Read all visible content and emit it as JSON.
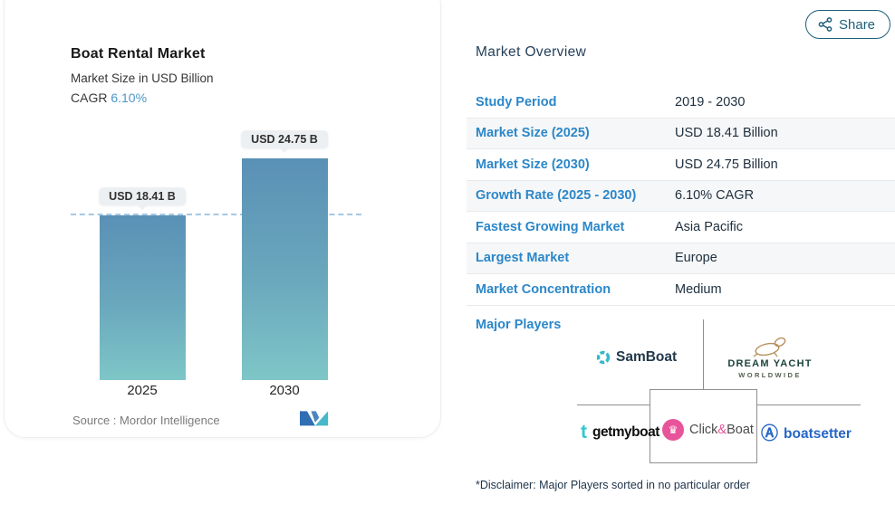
{
  "share": {
    "label": "Share"
  },
  "chart_card": {
    "title": "Boat Rental Market",
    "subtitle": "Market Size in USD Billion",
    "cagr_label": "CAGR",
    "cagr_value": "6.10%",
    "source_prefix": "Source :",
    "source_name": "Mordor Intelligence"
  },
  "chart_data": {
    "type": "bar",
    "categories": [
      "2025",
      "2030"
    ],
    "values": [
      18.41,
      24.75
    ],
    "value_labels": [
      "USD 18.41 B",
      "USD 24.75 B"
    ],
    "title": "Boat Rental Market",
    "ylabel": "Market Size in USD Billion",
    "cagr": "6.10%",
    "baseline_at": 18.41,
    "ylim": [
      0,
      26
    ],
    "grid": false,
    "legend": false,
    "bar_gradient": [
      "#5a90b6",
      "#7ec6c7"
    ],
    "baseline_color": "#a6c8e4"
  },
  "overview": {
    "heading": "Market Overview",
    "rows": [
      {
        "label": "Study Period",
        "value": "2019 - 2030"
      },
      {
        "label": "Market Size (2025)",
        "value": "USD 18.41 Billion"
      },
      {
        "label": "Market Size (2030)",
        "value": "USD 24.75 Billion"
      },
      {
        "label": "Growth Rate (2025 - 2030)",
        "value": "6.10% CAGR"
      },
      {
        "label": "Fastest Growing Market",
        "value": "Asia Pacific"
      },
      {
        "label": "Largest Market",
        "value": "Europe"
      },
      {
        "label": "Market Concentration",
        "value": "Medium"
      }
    ],
    "major_players_label": "Major Players",
    "players": {
      "samboat": {
        "name": "SamBoat"
      },
      "dream_yacht": {
        "line1": "DREAM YACHT",
        "line2": "WORLDWIDE"
      },
      "getmyboat": {
        "name": "getmyboat",
        "icon_glyph": "t"
      },
      "clickboat": {
        "part1": "Click",
        "amp": "&",
        "part2": "Boat",
        "icon_glyph": "♛"
      },
      "boatsetter": {
        "name": "boatsetter",
        "icon_glyph": "Ⓐ"
      }
    },
    "disclaimer": "*Disclaimer: Major Players sorted in no particular order"
  },
  "colors": {
    "accent_blue": "#4c96c8",
    "row_label_blue": "#2b87c9",
    "share_teal": "#1d5f7a",
    "bar_top": "#5a90b6",
    "bar_bottom": "#7ec6c7",
    "clickboat_pink": "#e8549a",
    "boatsetter_blue": "#2666c5",
    "getmyboat_cyan": "#2fc9cc"
  }
}
